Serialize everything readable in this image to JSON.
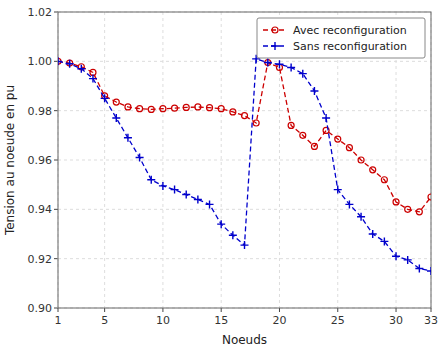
{
  "chart_data": {
    "type": "line",
    "x_label": "Noeuds",
    "y_label": "Tension au noeude en pu",
    "x": [
      1,
      2,
      3,
      4,
      5,
      6,
      7,
      8,
      9,
      10,
      11,
      12,
      13,
      14,
      15,
      16,
      17,
      18,
      19,
      20,
      21,
      22,
      23,
      24,
      25,
      26,
      27,
      28,
      29,
      30,
      31,
      32,
      33
    ],
    "series": [
      {
        "name": "Avec reconfiguration",
        "color": "#cc0000",
        "marker": "circle",
        "line_style": "dashed",
        "values": [
          1.0,
          0.9993,
          0.9978,
          0.9955,
          0.986,
          0.9835,
          0.9815,
          0.9808,
          0.9805,
          0.9808,
          0.981,
          0.9813,
          0.9815,
          0.9812,
          0.9808,
          0.9795,
          0.978,
          0.975,
          0.9995,
          0.9975,
          0.974,
          0.97,
          0.9655,
          0.972,
          0.9685,
          0.965,
          0.96,
          0.956,
          0.952,
          0.943,
          0.94,
          0.939,
          0.945
        ]
      },
      {
        "name": "Sans reconfiguration",
        "color": "#0000cc",
        "marker": "plus",
        "line_style": "dashed",
        "values": [
          1.0,
          0.999,
          0.997,
          0.993,
          0.985,
          0.977,
          0.969,
          0.961,
          0.952,
          0.9495,
          0.948,
          0.946,
          0.944,
          0.942,
          0.934,
          0.9295,
          0.9255,
          1.001,
          0.9995,
          0.9988,
          0.9975,
          0.995,
          0.988,
          0.977,
          0.948,
          0.942,
          0.937,
          0.93,
          0.927,
          0.921,
          0.9195,
          0.916,
          0.915
        ]
      }
    ],
    "xlim": [
      1,
      33
    ],
    "ylim": [
      0.9,
      1.02
    ],
    "xticks": [
      1,
      5,
      10,
      15,
      20,
      25,
      30,
      33
    ],
    "yticks": [
      {
        "value": 0.9,
        "label": "0.90"
      },
      0.92,
      0.94,
      0.96,
      0.98,
      {
        "value": 1.0,
        "label": "1.00"
      },
      1.02
    ],
    "grid": true,
    "legend": "upper right"
  }
}
